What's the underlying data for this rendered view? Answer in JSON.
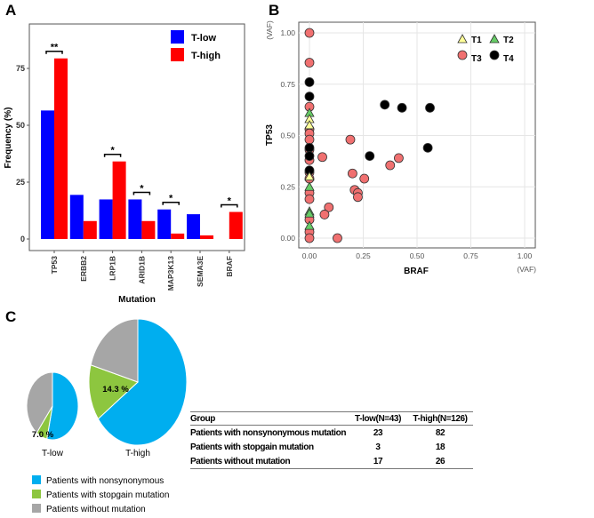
{
  "panels": {
    "a": "A",
    "b": "B",
    "c": "C"
  },
  "chart_data": [
    {
      "type": "bar",
      "panel": "A",
      "categories": [
        "TP53",
        "ERBB2",
        "LRP1B",
        "ARID1B",
        "MAP3K13",
        "SEMA3E",
        "BRAF"
      ],
      "series": [
        {
          "name": "T-low",
          "color": "#0000ff",
          "values": [
            56.5,
            19.4,
            17.4,
            17.4,
            13.0,
            10.9,
            0
          ]
        },
        {
          "name": "T-high",
          "color": "#ff0000",
          "values": [
            79.4,
            7.9,
            34.1,
            7.9,
            2.4,
            1.6,
            11.9
          ]
        }
      ],
      "significance": [
        "**",
        "",
        "*",
        "*",
        "*",
        "",
        "*"
      ],
      "xlabel": "Mutation",
      "ylabel": "Frequency (%)",
      "ylim": [
        -4,
        95
      ],
      "yticks": [
        "0",
        "25",
        "50",
        "75"
      ],
      "legend": "top-right"
    },
    {
      "type": "scatter",
      "panel": "B",
      "xlabel": "BRAF",
      "ylabel": "TP53",
      "xunit": "(VAF)",
      "yunit": "(VAF)",
      "xlim": [
        -0.04,
        1.04
      ],
      "ylim": [
        -0.05,
        1.06
      ],
      "xticks": [
        "0.00",
        "0.25",
        "0.50",
        "0.75",
        "1.00"
      ],
      "yticks": [
        "0.00",
        "0.25",
        "0.50",
        "0.75",
        "1.00"
      ],
      "grid": true,
      "legend": "top-right",
      "series": [
        {
          "name": "T1",
          "marker": "triangle",
          "color": "#ffff99",
          "points": [
            [
              0,
              0.58
            ],
            [
              0,
              0.55
            ],
            [
              0,
              0.3
            ]
          ]
        },
        {
          "name": "T2",
          "marker": "triangle",
          "color": "#66cc66",
          "points": [
            [
              0,
              0.61
            ],
            [
              0,
              0.25
            ],
            [
              0,
              0.13
            ],
            [
              0,
              0.12
            ],
            [
              0,
              0.06
            ]
          ]
        },
        {
          "name": "T3",
          "marker": "circle",
          "color": "#f07070",
          "points": [
            [
              0,
              1.0
            ],
            [
              0,
              0.855
            ],
            [
              0,
              0.64
            ],
            [
              0,
              0.53
            ],
            [
              0,
              0.51
            ],
            [
              0,
              0.48
            ],
            [
              0,
              0.43
            ],
            [
              0,
              0.38
            ],
            [
              0,
              0.32
            ],
            [
              0,
              0.29
            ],
            [
              0,
              0.22
            ],
            [
              0,
              0.19
            ],
            [
              0,
              0.09
            ],
            [
              0,
              0.03
            ],
            [
              0,
              0
            ],
            [
              0.06,
              0.395
            ],
            [
              0.19,
              0.48
            ],
            [
              0.2,
              0.315
            ],
            [
              0.255,
              0.29
            ],
            [
              0.21,
              0.235
            ],
            [
              0.225,
              0.22
            ],
            [
              0.225,
              0.2
            ],
            [
              0.09,
              0.15
            ],
            [
              0.07,
              0.115
            ],
            [
              0.13,
              0.0
            ],
            [
              0.375,
              0.355
            ],
            [
              0.415,
              0.39
            ]
          ]
        },
        {
          "name": "T4",
          "marker": "circle",
          "color": "#000000",
          "points": [
            [
              0,
              0.76
            ],
            [
              0,
              0.69
            ],
            [
              0.35,
              0.65
            ],
            [
              0.43,
              0.635
            ],
            [
              0.56,
              0.635
            ],
            [
              0.55,
              0.44
            ],
            [
              0.28,
              0.4
            ],
            [
              0,
              0.44
            ],
            [
              0,
              0.4
            ],
            [
              0,
              0.33
            ]
          ]
        }
      ]
    },
    {
      "type": "pie",
      "panel": "C",
      "pies": [
        {
          "name": "T-low",
          "values": [
            23,
            3,
            17
          ],
          "label": "7.0 %"
        },
        {
          "name": "T-high",
          "values": [
            82,
            18,
            26
          ],
          "label": "14.3 %"
        }
      ],
      "categories": [
        "Patients with nonsynonymous",
        "Patients with stopgain mutation",
        "Patients without mutation"
      ],
      "colors": [
        "#00aeef",
        "#8dc63f",
        "#a6a6a6"
      ]
    }
  ],
  "table": {
    "headers": [
      "Group",
      "T-low(N=43)",
      "T-high(N=126)"
    ],
    "rows": [
      [
        "Patients with nonsynonymous mutation",
        "23",
        "82"
      ],
      [
        "Patients with stopgain mutation",
        "3",
        "18"
      ],
      [
        "Patients without mutation",
        "17",
        "26"
      ]
    ]
  }
}
